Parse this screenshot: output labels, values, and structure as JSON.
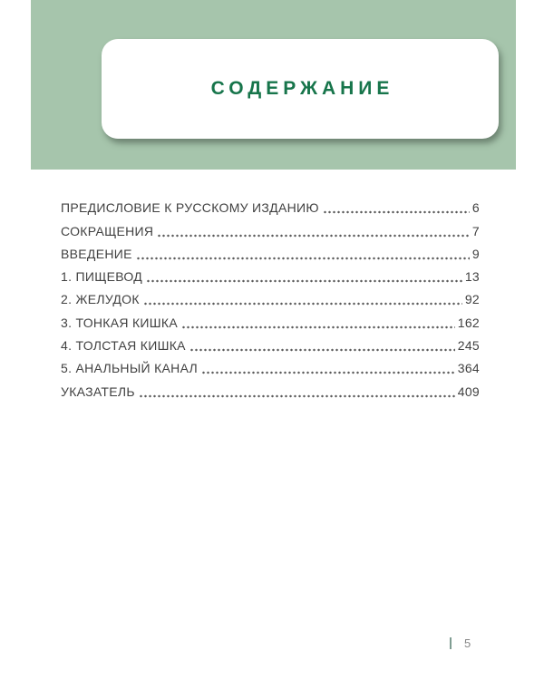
{
  "header": {
    "title": "СОДЕРЖАНИЕ"
  },
  "toc": {
    "items": [
      {
        "label": "ПРЕДИСЛОВИЕ К РУССКОМУ ИЗДАНИЮ",
        "page": "6"
      },
      {
        "label": "СОКРАЩЕНИЯ",
        "page": "7"
      },
      {
        "label": "ВВЕДЕНИЕ",
        "page": "9"
      },
      {
        "label": "1. ПИЩЕВОД",
        "page": "13"
      },
      {
        "label": "2. ЖЕЛУДОК",
        "page": "92"
      },
      {
        "label": "3. ТОНКАЯ КИШКА",
        "page": "162"
      },
      {
        "label": "4. ТОЛСТАЯ КИШКА",
        "page": "245"
      },
      {
        "label": "5. АНАЛЬНЫЙ КАНАЛ",
        "page": "364"
      },
      {
        "label": "УКАЗАТЕЛЬ",
        "page": "409"
      }
    ]
  },
  "footer": {
    "page_number": "5"
  },
  "colors": {
    "band-green": "#a6c5ac",
    "title-green": "#17754b",
    "text-gray": "#414141",
    "dot-gray": "#5a5a5a",
    "footer-bar-teal": "#7f9d92",
    "page-number-gray": "#868686"
  }
}
